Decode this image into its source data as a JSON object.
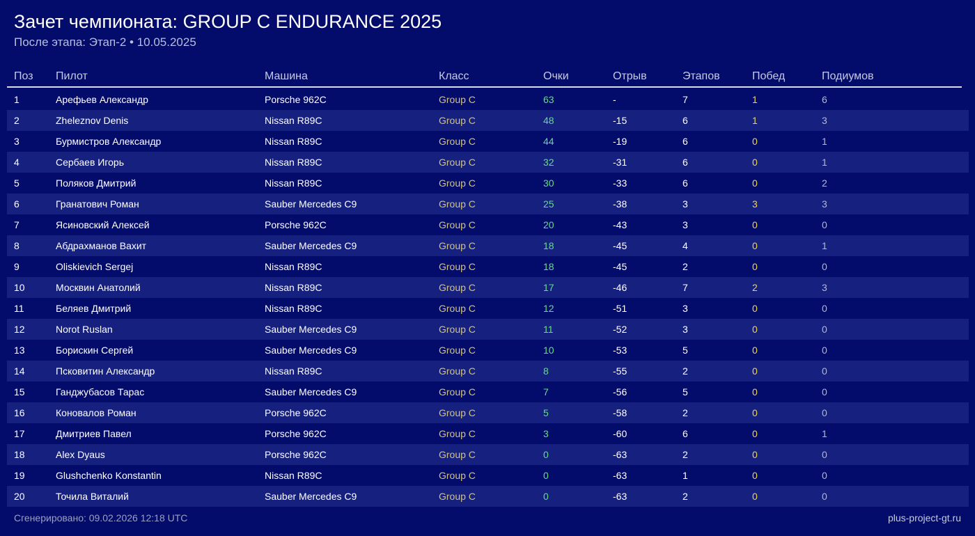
{
  "header": {
    "title": "Зачет чемпионата: GROUP C ENDURANCE 2025",
    "subtitle": "После этапа: Этап-2 • 10.05.2025"
  },
  "table": {
    "columns": {
      "pos": "Поз",
      "driver": "Пилот",
      "car": "Машина",
      "class": "Класс",
      "points": "Очки",
      "gap": "Отрыв",
      "stages": "Этапов",
      "wins": "Побед",
      "podiums": "Подиумов"
    },
    "rows": [
      {
        "pos": "1",
        "driver": "Арефьев Александр",
        "car": "Porsche 962C",
        "class": "Group C",
        "points": "63",
        "gap": "-",
        "stages": "7",
        "wins": "1",
        "podiums": "6"
      },
      {
        "pos": "2",
        "driver": "Zheleznov Denis",
        "car": "Nissan R89C",
        "class": "Group C",
        "points": "48",
        "gap": "-15",
        "stages": "6",
        "wins": "1",
        "podiums": "3"
      },
      {
        "pos": "3",
        "driver": "Бурмистров Александр",
        "car": "Nissan R89C",
        "class": "Group C",
        "points": "44",
        "gap": "-19",
        "stages": "6",
        "wins": "0",
        "podiums": "1"
      },
      {
        "pos": "4",
        "driver": "Сербаев Игорь",
        "car": "Nissan R89C",
        "class": "Group C",
        "points": "32",
        "gap": "-31",
        "stages": "6",
        "wins": "0",
        "podiums": "1"
      },
      {
        "pos": "5",
        "driver": "Поляков Дмитрий",
        "car": "Nissan R89C",
        "class": "Group C",
        "points": "30",
        "gap": "-33",
        "stages": "6",
        "wins": "0",
        "podiums": "2"
      },
      {
        "pos": "6",
        "driver": "Гранатович Роман",
        "car": "Sauber Mercedes C9",
        "class": "Group C",
        "points": "25",
        "gap": "-38",
        "stages": "3",
        "wins": "3",
        "podiums": "3"
      },
      {
        "pos": "7",
        "driver": "Ясиновский Алексей",
        "car": "Porsche 962C",
        "class": "Group C",
        "points": "20",
        "gap": "-43",
        "stages": "3",
        "wins": "0",
        "podiums": "0"
      },
      {
        "pos": "8",
        "driver": "Абдрахманов Вахит",
        "car": "Sauber Mercedes C9",
        "class": "Group C",
        "points": "18",
        "gap": "-45",
        "stages": "4",
        "wins": "0",
        "podiums": "1"
      },
      {
        "pos": "9",
        "driver": "Oliskievich Sergej",
        "car": "Nissan R89C",
        "class": "Group C",
        "points": "18",
        "gap": "-45",
        "stages": "2",
        "wins": "0",
        "podiums": "0"
      },
      {
        "pos": "10",
        "driver": "Москвин Анатолий",
        "car": "Nissan R89C",
        "class": "Group C",
        "points": "17",
        "gap": "-46",
        "stages": "7",
        "wins": "2",
        "podiums": "3"
      },
      {
        "pos": "11",
        "driver": "Беляев Дмитрий",
        "car": "Nissan R89C",
        "class": "Group C",
        "points": "12",
        "gap": "-51",
        "stages": "3",
        "wins": "0",
        "podiums": "0"
      },
      {
        "pos": "12",
        "driver": "Norot Ruslan",
        "car": "Sauber Mercedes C9",
        "class": "Group C",
        "points": "11",
        "gap": "-52",
        "stages": "3",
        "wins": "0",
        "podiums": "0"
      },
      {
        "pos": "13",
        "driver": "Борискин Сергей",
        "car": "Sauber Mercedes C9",
        "class": "Group C",
        "points": "10",
        "gap": "-53",
        "stages": "5",
        "wins": "0",
        "podiums": "0"
      },
      {
        "pos": "14",
        "driver": "Псковитин Александр",
        "car": "Nissan R89C",
        "class": "Group C",
        "points": "8",
        "gap": "-55",
        "stages": "2",
        "wins": "0",
        "podiums": "0"
      },
      {
        "pos": "15",
        "driver": "Ганджубасов Тарас",
        "car": "Sauber Mercedes C9",
        "class": "Group C",
        "points": "7",
        "gap": "-56",
        "stages": "5",
        "wins": "0",
        "podiums": "0"
      },
      {
        "pos": "16",
        "driver": "Коновалов Роман",
        "car": "Porsche 962C",
        "class": "Group C",
        "points": "5",
        "gap": "-58",
        "stages": "2",
        "wins": "0",
        "podiums": "0"
      },
      {
        "pos": "17",
        "driver": "Дмитриев Павел",
        "car": "Porsche 962C",
        "class": "Group C",
        "points": "3",
        "gap": "-60",
        "stages": "6",
        "wins": "0",
        "podiums": "1"
      },
      {
        "pos": "18",
        "driver": "Alex Dyaus",
        "car": "Porsche 962C",
        "class": "Group C",
        "points": "0",
        "gap": "-63",
        "stages": "2",
        "wins": "0",
        "podiums": "0"
      },
      {
        "pos": "19",
        "driver": "Glushchenko Konstantin",
        "car": "Nissan R89C",
        "class": "Group C",
        "points": "0",
        "gap": "-63",
        "stages": "1",
        "wins": "0",
        "podiums": "0"
      },
      {
        "pos": "20",
        "driver": "Точила Виталий",
        "car": "Sauber Mercedes C9",
        "class": "Group C",
        "points": "0",
        "gap": "-63",
        "stages": "2",
        "wins": "0",
        "podiums": "0"
      }
    ]
  },
  "footer": {
    "generated": "Сгенерировано: 09.02.2026 12:18 UTC",
    "site": "plus-project-gt.ru"
  },
  "colors": {
    "background": "#030b6b",
    "row_alt": "#15207f",
    "class_text": "#d4c37a",
    "points_text": "#5fe07a",
    "wins_text": "#f2d44a",
    "podiums_text": "#b3b8d0"
  }
}
